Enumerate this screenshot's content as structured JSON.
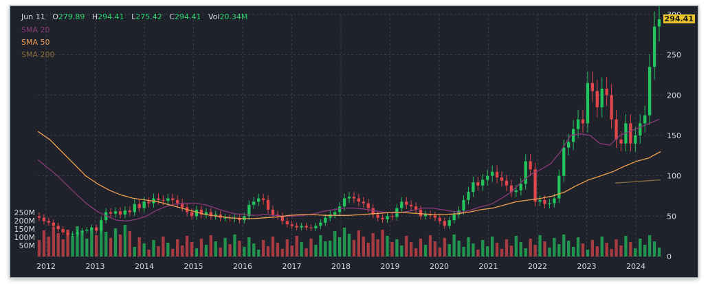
{
  "header": {
    "date": "Jun 11",
    "open_label": "O",
    "open": "279.89",
    "high_label": "H",
    "high": "294.41",
    "low_label": "L",
    "low": "275.42",
    "close_label": "C",
    "close": "294.41",
    "vol_label": "Vol",
    "vol": "20.34M"
  },
  "legend": [
    {
      "label": "SMA 20",
      "color": "#8b3a7a"
    },
    {
      "label": "SMA 50",
      "color": "#f0a050"
    },
    {
      "label": "SMA 200",
      "color": "#8a6d3b"
    }
  ],
  "last_price_badge": "294.41",
  "colors": {
    "up": "#22c55e",
    "down": "#e0474c",
    "background": "#1f222b",
    "grid": "#3a3f4b"
  },
  "chart_data": {
    "type": "candlestick",
    "x_ticks": [
      "2012",
      "2013",
      "2014",
      "2015",
      "2016",
      "2017",
      "2018",
      "2019",
      "2020",
      "2021",
      "2022",
      "2023",
      "2024"
    ],
    "y_ticks": [
      0,
      50,
      100,
      150,
      200,
      250,
      300
    ],
    "y_tick_labels": [
      "0",
      "50",
      "100",
      "150",
      "200",
      "250",
      "300"
    ],
    "ylim": [
      0,
      300
    ],
    "volume_ticks": [
      "250M",
      "200M",
      "150M",
      "100M",
      "50M"
    ],
    "grid": true,
    "legend_position": "top-left",
    "closes": [
      48,
      44,
      42,
      38,
      34,
      30,
      27,
      28,
      30,
      32,
      33,
      36,
      32,
      45,
      55,
      53,
      56,
      52,
      57,
      55,
      65,
      60,
      68,
      66,
      72,
      70,
      69,
      72,
      70,
      66,
      61,
      55,
      50,
      58,
      52,
      55,
      50,
      52,
      48,
      48,
      47,
      48,
      45,
      50,
      64,
      68,
      72,
      70,
      58,
      52,
      50,
      44,
      40,
      38,
      36,
      38,
      36,
      35,
      38,
      42,
      48,
      52,
      55,
      62,
      72,
      74,
      72,
      68,
      66,
      60,
      52,
      48,
      46,
      50,
      49,
      60,
      68,
      64,
      62,
      58,
      50,
      52,
      51,
      48,
      44,
      38,
      45,
      52,
      57,
      70,
      80,
      92,
      88,
      95,
      100,
      105,
      98,
      94,
      88,
      80,
      82,
      90,
      118,
      108,
      68,
      70,
      65,
      66,
      72,
      100,
      135,
      142,
      158,
      170,
      165,
      215,
      205,
      185,
      208,
      200,
      170,
      145,
      140,
      165,
      140,
      150,
      165,
      175,
      235,
      285,
      294
    ],
    "open_first": 50,
    "sma20": [
      120,
      110,
      100,
      88,
      76,
      65,
      56,
      50,
      45,
      44,
      46,
      50,
      57,
      62,
      65,
      66,
      66,
      64,
      60,
      56,
      53,
      52,
      51,
      52,
      51,
      50,
      50,
      51,
      53,
      56,
      58,
      60,
      60,
      59,
      57,
      55,
      54,
      55,
      57,
      60,
      60,
      58,
      56,
      55,
      58,
      62,
      65,
      72,
      80,
      92,
      102,
      108,
      115,
      130,
      150,
      152,
      150,
      140,
      138,
      150,
      155,
      160,
      165,
      170
    ],
    "sma50": [
      155,
      145,
      130,
      115,
      100,
      90,
      82,
      76,
      72,
      70,
      68,
      64,
      60,
      56,
      52,
      50,
      48,
      47,
      47,
      48,
      49,
      51,
      52,
      52,
      51,
      51,
      51,
      52,
      53,
      54,
      55,
      54,
      53,
      52,
      52,
      53,
      55,
      58,
      60,
      64,
      68,
      70,
      72,
      75,
      80,
      88,
      95,
      100,
      105,
      112,
      118,
      122,
      130
    ],
    "sma200": [
      91,
      92,
      93,
      94,
      95
    ]
  }
}
